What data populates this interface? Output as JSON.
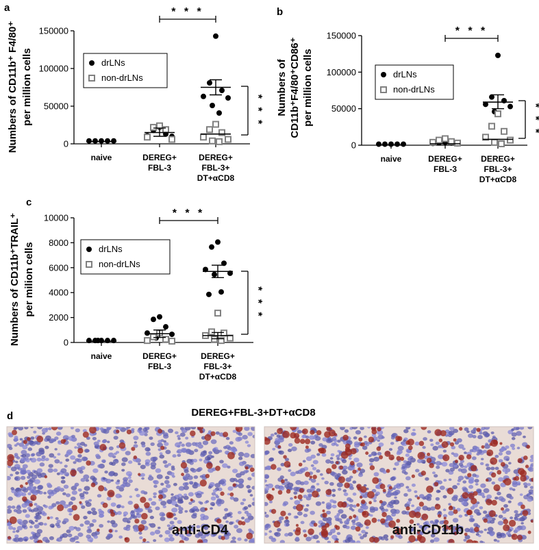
{
  "colors": {
    "drln": "#000000",
    "non_drln": "#808080",
    "stain_bg": "#e9dcd6",
    "nuclei": "#6f6fae",
    "dab": "#9c2a22"
  },
  "chart_data": [
    {
      "id": "a",
      "type": "scatter",
      "panel_label": "a",
      "ylabel": [
        "Numbers of CD11b⁺ F4/80⁺",
        "per million cells"
      ],
      "ylim": [
        0,
        150000
      ],
      "yticks": [
        0,
        50000,
        100000,
        150000
      ],
      "categories": [
        [
          "naive"
        ],
        [
          "DEREG+",
          "FBL-3"
        ],
        [
          "DEREG+",
          "FBL-3+",
          "DT+αCD8"
        ]
      ],
      "legend": {
        "entries": [
          "drLNs",
          "non-drLNs"
        ],
        "position": "top-left"
      },
      "series": [
        {
          "name": "drLNs",
          "points": [
            [
              0,
              3000
            ],
            [
              0,
              3000
            ],
            [
              0,
              3000
            ],
            [
              0,
              3000
            ],
            [
              0,
              3000
            ],
            [
              1,
              21000
            ],
            [
              1,
              17000
            ],
            [
              1,
              12000
            ],
            [
              1,
              10000
            ],
            [
              1,
              9000
            ],
            [
              2,
              142000
            ],
            [
              2,
              80000
            ],
            [
              2,
              70000
            ],
            [
              2,
              62000
            ],
            [
              2,
              60000
            ],
            [
              2,
              50000
            ],
            [
              2,
              40000
            ]
          ]
        },
        {
          "name": "non-drLNs",
          "points": [
            [
              1,
              23000
            ],
            [
              1,
              21000
            ],
            [
              1,
              18000
            ],
            [
              1,
              8000
            ],
            [
              1,
              5000
            ],
            [
              2,
              25000
            ],
            [
              2,
              18000
            ],
            [
              2,
              14000
            ],
            [
              2,
              8000
            ],
            [
              2,
              5000
            ],
            [
              2,
              3000
            ],
            [
              2,
              2000
            ]
          ]
        }
      ],
      "means": [
        [
          0,
          3000
        ],
        [
          1,
          15000
        ],
        [
          2,
          75000
        ],
        [
          2,
          13000
        ]
      ],
      "sem": [
        [
          1,
          10000,
          21000
        ],
        [
          2,
          65000,
          85000
        ]
      ],
      "significance": [
        {
          "text": "* * *",
          "from": 1,
          "to": 2,
          "orientation": "horizontal"
        },
        {
          "text": "* * *",
          "orientation": "vertical"
        }
      ]
    },
    {
      "id": "b",
      "type": "scatter",
      "panel_label": "b",
      "ylabel": [
        "Numbers of",
        "CD11b⁺F4/80⁺CD86⁺",
        "per million cells"
      ],
      "ylim": [
        0,
        150000
      ],
      "yticks": [
        0,
        50000,
        100000,
        150000
      ],
      "categories": [
        [
          "naive"
        ],
        [
          "DEREG+",
          "FBL-3"
        ],
        [
          "DEREG+",
          "FBL-3+",
          "DT+αCD8"
        ]
      ],
      "legend": {
        "entries": [
          "drLNs",
          "non-drLNs"
        ],
        "position": "top-left"
      },
      "series": [
        {
          "name": "drLNs",
          "points": [
            [
              0,
              500
            ],
            [
              0,
              500
            ],
            [
              0,
              500
            ],
            [
              0,
              500
            ],
            [
              0,
              500
            ],
            [
              1,
              3000
            ],
            [
              1,
              2500
            ],
            [
              1,
              2000
            ],
            [
              1,
              1500
            ],
            [
              1,
              1000
            ],
            [
              2,
              122000
            ],
            [
              2,
              65000
            ],
            [
              2,
              60000
            ],
            [
              2,
              55000
            ],
            [
              2,
              52000
            ],
            [
              2,
              45000
            ]
          ]
        },
        {
          "name": "non-drLNs",
          "points": [
            [
              1,
              8000
            ],
            [
              1,
              6000
            ],
            [
              1,
              4000
            ],
            [
              1,
              3000
            ],
            [
              1,
              2000
            ],
            [
              2,
              42000
            ],
            [
              2,
              25000
            ],
            [
              2,
              18000
            ],
            [
              2,
              10000
            ],
            [
              2,
              6000
            ],
            [
              2,
              3000
            ],
            [
              2,
              1000
            ]
          ]
        }
      ],
      "means": [
        [
          0,
          500
        ],
        [
          1,
          2000
        ],
        [
          2,
          59000
        ],
        [
          2,
          8000
        ]
      ],
      "sem": [
        [
          2,
          50000,
          69000
        ]
      ],
      "significance": [
        {
          "text": "* * *",
          "from": 1,
          "to": 2,
          "orientation": "horizontal"
        },
        {
          "text": "* * *",
          "orientation": "vertical"
        }
      ]
    },
    {
      "id": "c",
      "type": "scatter",
      "panel_label": "c",
      "ylabel": [
        "Numbers of CD11b⁺TRAIL⁺",
        "per milion cells"
      ],
      "ylim": [
        0,
        10000
      ],
      "yticks": [
        0,
        2000,
        4000,
        6000,
        8000,
        10000
      ],
      "categories": [
        [
          "naive"
        ],
        [
          "DEREG+",
          "FBL-3"
        ],
        [
          "DEREG+",
          "FBL-3+",
          "DT+αCD8"
        ]
      ],
      "legend": {
        "entries": [
          "drLNs",
          "non-drLNs"
        ],
        "position": "top-left"
      },
      "series": [
        {
          "name": "drLNs",
          "points": [
            [
              0,
              100
            ],
            [
              0,
              100
            ],
            [
              0,
              100
            ],
            [
              0,
              100
            ],
            [
              0,
              100
            ],
            [
              0,
              100
            ],
            [
              1,
              2000
            ],
            [
              1,
              1800
            ],
            [
              1,
              1200
            ],
            [
              1,
              700
            ],
            [
              1,
              600
            ],
            [
              1,
              300
            ],
            [
              2,
              8000
            ],
            [
              2,
              7600
            ],
            [
              2,
              6300
            ],
            [
              2,
              5800
            ],
            [
              2,
              5500
            ],
            [
              2,
              5400
            ],
            [
              2,
              4000
            ],
            [
              2,
              3800
            ]
          ]
        },
        {
          "name": "non-drLNs",
          "points": [
            [
              1,
              700
            ],
            [
              1,
              400
            ],
            [
              1,
              200
            ],
            [
              1,
              100
            ],
            [
              1,
              50
            ],
            [
              2,
              2300
            ],
            [
              2,
              800
            ],
            [
              2,
              700
            ],
            [
              2,
              500
            ],
            [
              2,
              300
            ],
            [
              2,
              200
            ],
            [
              2,
              100
            ]
          ]
        }
      ],
      "means": [
        [
          0,
          100
        ],
        [
          1,
          700
        ],
        [
          2,
          5700
        ],
        [
          2,
          550
        ]
      ],
      "sem": [
        [
          1,
          400,
          1000
        ],
        [
          2,
          5200,
          6200
        ],
        [
          2,
          300,
          800
        ]
      ],
      "significance": [
        {
          "text": "* * *",
          "from": 1,
          "to": 2,
          "orientation": "horizontal"
        },
        {
          "text": "* * *",
          "orientation": "vertical"
        }
      ]
    }
  ],
  "panel_d": {
    "panel_label": "d",
    "title": "DEREG+FBL-3+DT+αCD8",
    "images": [
      {
        "label": "anti-CD4",
        "stain_density": 0.18
      },
      {
        "label": "anti-CD11b",
        "stain_density": 0.45
      }
    ]
  }
}
